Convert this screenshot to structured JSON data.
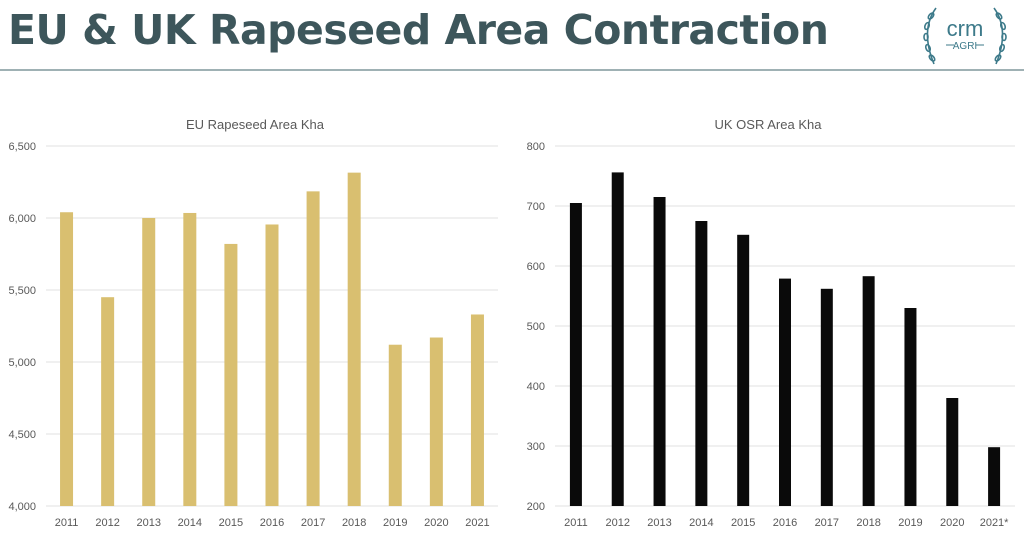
{
  "header": {
    "title": "EU & UK Rapeseed Area Contraction",
    "logo_text": "crm",
    "logo_subtext": "AGRI"
  },
  "colors": {
    "title": "#3d565b",
    "rule": "#9fb1b4",
    "eu_bar": "#d9bf70",
    "uk_bar": "#0a0a0a",
    "logo": "#3d7a8a"
  },
  "chart_data": [
    {
      "type": "bar",
      "title": "EU Rapeseed Area Kha",
      "categories": [
        "2011",
        "2012",
        "2013",
        "2014",
        "2015",
        "2016",
        "2017",
        "2018",
        "2019",
        "2020",
        "2021"
      ],
      "values": [
        6040,
        5450,
        6000,
        6035,
        5820,
        5955,
        6185,
        6315,
        5120,
        5170,
        5330
      ],
      "ylim": [
        4000,
        6500
      ],
      "yticks": [
        4000,
        4500,
        5000,
        5500,
        6000,
        6500
      ],
      "ytick_labels": [
        "4,000",
        "4,500",
        "5,000",
        "5,500",
        "6,000",
        "6,500"
      ],
      "xlabel": "",
      "ylabel": "",
      "grid": true,
      "legend": "none"
    },
    {
      "type": "bar",
      "title": "UK OSR Area Kha",
      "categories": [
        "2011",
        "2012",
        "2013",
        "2014",
        "2015",
        "2016",
        "2017",
        "2018",
        "2019",
        "2020",
        "2021*"
      ],
      "values": [
        705,
        756,
        715,
        675,
        652,
        579,
        562,
        583,
        530,
        380,
        298
      ],
      "ylim": [
        200,
        800
      ],
      "yticks": [
        200,
        300,
        400,
        500,
        600,
        700,
        800
      ],
      "ytick_labels": [
        "200",
        "300",
        "400",
        "500",
        "600",
        "700",
        "800"
      ],
      "xlabel": "",
      "ylabel": "",
      "grid": true,
      "legend": "none"
    }
  ]
}
